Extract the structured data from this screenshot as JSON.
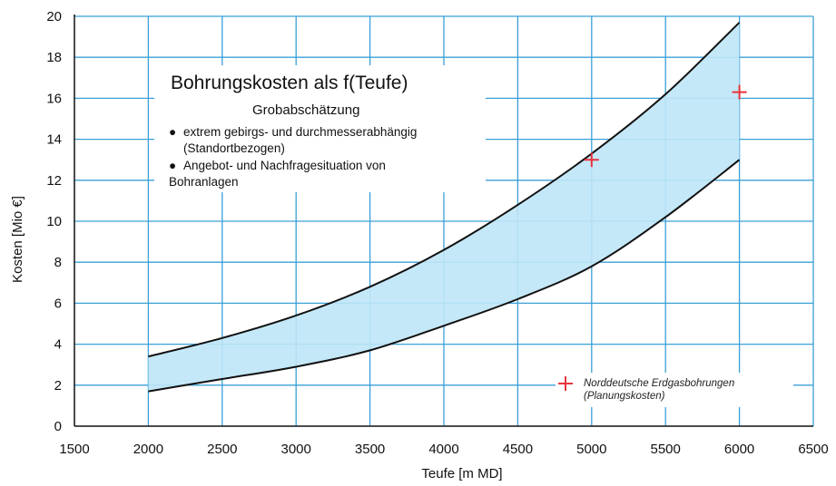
{
  "chart_data": {
    "type": "area",
    "title": "Bohrungskosten als f(Teufe)",
    "subtitle": "Grobabschätzung",
    "notes": [
      "extrem gebirgs- und durchmesserabhängig",
      "(Standortbezogen)",
      "Angebot- und Nachfragesituation von",
      "Bohranlagen"
    ],
    "xlabel": "Teufe [m MD]",
    "ylabel": "Kosten [Mio €]",
    "xlim": [
      1500,
      6500
    ],
    "ylim": [
      0,
      20
    ],
    "xticks": [
      1500,
      2000,
      2500,
      3000,
      3500,
      4000,
      4500,
      5000,
      5500,
      6000,
      6500
    ],
    "yticks": [
      0,
      2,
      4,
      6,
      8,
      10,
      12,
      14,
      16,
      18,
      20
    ],
    "grid": true,
    "band": {
      "x": [
        2000,
        2500,
        3000,
        3500,
        4000,
        4500,
        5000,
        5500,
        6000
      ],
      "upper": [
        3.4,
        4.3,
        5.4,
        6.8,
        8.6,
        10.8,
        13.3,
        16.2,
        19.7
      ],
      "lower": [
        1.7,
        2.3,
        2.9,
        3.7,
        4.9,
        6.2,
        7.8,
        10.2,
        13.0
      ],
      "fill_color": "#bfe6f7"
    },
    "points": {
      "name": "Norddeutsche Erdgasbohrungen",
      "name_line2": "(Planungskosten)",
      "marker": "+",
      "color": "#e8343c",
      "x": [
        5000,
        6000
      ],
      "y": [
        13.0,
        16.3
      ]
    },
    "legend_position": "bottom-right",
    "grid_color": "#3aa0d8"
  }
}
